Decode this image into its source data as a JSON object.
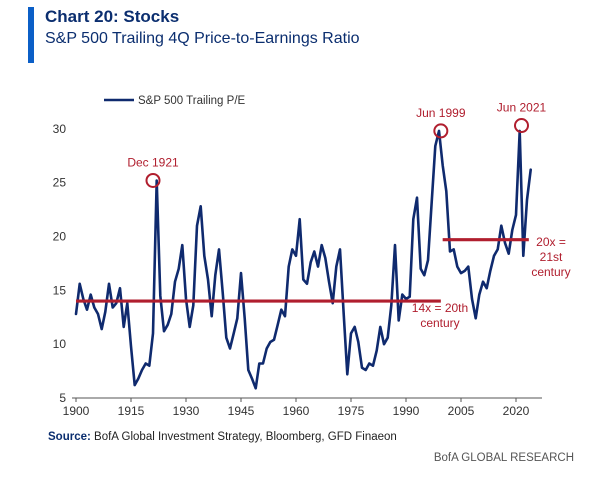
{
  "header": {
    "title": "Chart 20: Stocks",
    "subtitle": "S&P 500 Trailing 4Q Price-to-Earnings Ratio"
  },
  "footer": {
    "source_label": "Source:",
    "source_text": "BofA Global Investment Strategy, Bloomberg, GFD Finaeon",
    "credit": "BofA GLOBAL RESEARCH"
  },
  "colors": {
    "series": "#0f2a6e",
    "annotation": "#b01e2e",
    "accent": "#0b5fc7"
  },
  "chart_data": {
    "type": "line",
    "title": "",
    "xlabel": "",
    "ylabel": "",
    "xlim": [
      1900,
      2026
    ],
    "ylim": [
      5,
      31
    ],
    "xticks": [
      1900,
      1915,
      1930,
      1945,
      1960,
      1975,
      1990,
      2005,
      2020
    ],
    "yticks": [
      5,
      10,
      15,
      20,
      25,
      30
    ],
    "grid": false,
    "legend_position": "top-left",
    "series": [
      {
        "name": "S&P 500 Trailing P/E",
        "x": [
          1900,
          1901,
          1902,
          1903,
          1904,
          1905,
          1906,
          1907,
          1908,
          1909,
          1910,
          1911,
          1912,
          1913,
          1914,
          1915,
          1916,
          1917,
          1918,
          1919,
          1920,
          1921,
          1922,
          1923,
          1924,
          1925,
          1926,
          1927,
          1928,
          1929,
          1930,
          1931,
          1932,
          1933,
          1934,
          1935,
          1936,
          1937,
          1938,
          1939,
          1940,
          1941,
          1942,
          1943,
          1944,
          1945,
          1946,
          1947,
          1948,
          1949,
          1950,
          1951,
          1952,
          1953,
          1954,
          1955,
          1956,
          1957,
          1958,
          1959,
          1960,
          1961,
          1962,
          1963,
          1964,
          1965,
          1966,
          1967,
          1968,
          1969,
          1970,
          1971,
          1972,
          1973,
          1974,
          1975,
          1976,
          1977,
          1978,
          1979,
          1980,
          1981,
          1982,
          1983,
          1984,
          1985,
          1986,
          1987,
          1988,
          1989,
          1990,
          1991,
          1992,
          1993,
          1994,
          1995,
          1996,
          1997,
          1998,
          1999,
          2000,
          2001,
          2002,
          2003,
          2004,
          2005,
          2006,
          2007,
          2008,
          2009,
          2010,
          2011,
          2012,
          2013,
          2014,
          2015,
          2016,
          2017,
          2018,
          2019,
          2020,
          2021,
          2022,
          2023,
          2024
        ],
        "values": [
          12.8,
          15.6,
          14.2,
          13.2,
          14.6,
          13.4,
          12.8,
          11.4,
          13.0,
          15.6,
          13.4,
          13.8,
          15.2,
          11.6,
          13.8,
          9.8,
          6.2,
          6.8,
          7.6,
          8.2,
          8.0,
          11.0,
          25.2,
          14.5,
          11.2,
          11.8,
          12.8,
          15.8,
          17.0,
          19.2,
          14.2,
          11.6,
          13.6,
          21.0,
          22.8,
          18.2,
          16.0,
          12.6,
          16.4,
          18.8,
          14.8,
          10.6,
          9.6,
          11.0,
          12.4,
          16.6,
          12.4,
          7.6,
          6.8,
          5.9,
          8.2,
          8.2,
          9.6,
          10.2,
          10.4,
          11.8,
          13.2,
          12.6,
          17.2,
          18.8,
          18.2,
          21.6,
          16.0,
          15.6,
          17.6,
          18.6,
          17.2,
          19.2,
          18.0,
          15.8,
          13.8,
          17.2,
          18.8,
          12.8,
          7.2,
          11.0,
          11.6,
          10.2,
          7.8,
          7.6,
          8.2,
          8.0,
          9.4,
          11.6,
          10.0,
          10.6,
          13.6,
          19.2,
          12.2,
          14.6,
          14.2,
          14.4,
          21.6,
          23.6,
          17.0,
          16.4,
          17.8,
          23.2,
          28.4,
          29.8,
          26.6,
          24.2,
          18.6,
          18.8,
          17.2,
          16.6,
          16.8,
          17.2,
          14.2,
          12.4,
          14.6,
          15.8,
          15.2,
          16.8,
          18.2,
          18.8,
          21.0,
          19.4,
          18.4,
          20.6,
          22.0,
          29.8,
          18.2,
          23.4,
          26.2
        ]
      }
    ],
    "annotations": [
      {
        "label": "Dec 1921",
        "x": 1921,
        "y": 25.2
      },
      {
        "label": "Jun 1999",
        "x": 1999.5,
        "y": 29.8
      },
      {
        "label": "Jun 2021",
        "x": 2021.5,
        "y": 30.3
      }
    ],
    "reference_lines": [
      {
        "label_line1": "14x = 20th",
        "label_line2": "century",
        "x_start": 1900,
        "x_end": 1999.5,
        "y": 14
      },
      {
        "label_line1": "20x =",
        "label_line2": "21st",
        "label_line3": "century",
        "x_start": 2000,
        "x_end": 2023.5,
        "y": 19.7
      }
    ]
  }
}
